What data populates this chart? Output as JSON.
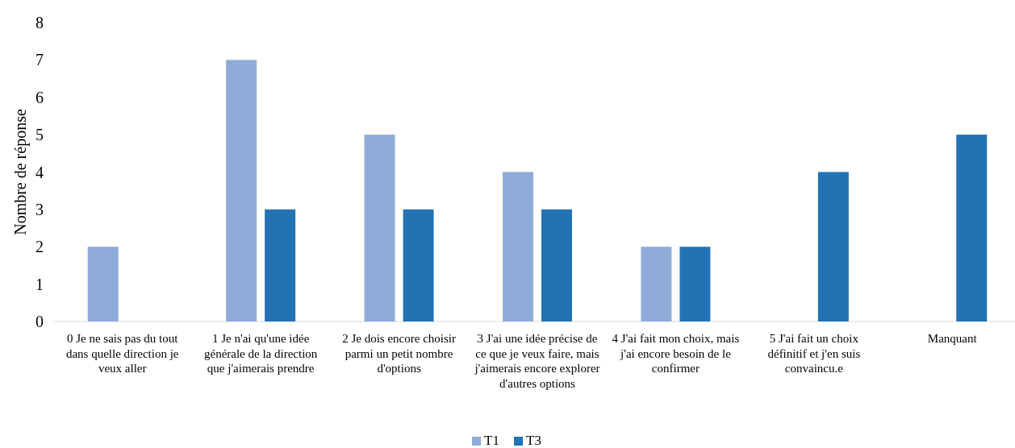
{
  "chart_data": {
    "type": "bar",
    "ylabel": "Nombre de réponse",
    "categories": [
      "0 Je ne sais pas du tout dans quelle direction je veux aller",
      "1 Je n'ai qu'une idée générale de la direction que j'aimerais prendre",
      "2 Je dois encore choisir parmi un petit nombre d'options",
      "3 J'ai une idée précise de ce que je veux faire, mais j'aimerais encore explorer d'autres options",
      "4 J'ai fait mon choix, mais j'ai encore besoin de le confirmer",
      "5 J'ai fait un choix définitif et j'en suis convaincu.e",
      "Manquant"
    ],
    "series": [
      {
        "name": "T1",
        "color": "#8eacd7",
        "values": [
          2,
          7,
          5,
          4,
          2,
          null,
          null
        ]
      },
      {
        "name": "T3",
        "color": "#2373b4",
        "values": [
          null,
          3,
          3,
          3,
          2,
          4,
          5
        ]
      }
    ],
    "ylim": [
      0,
      8
    ],
    "yticks": [
      0,
      1,
      2,
      3,
      4,
      5,
      6,
      7,
      8
    ],
    "grid": false,
    "legend": "bottom"
  }
}
